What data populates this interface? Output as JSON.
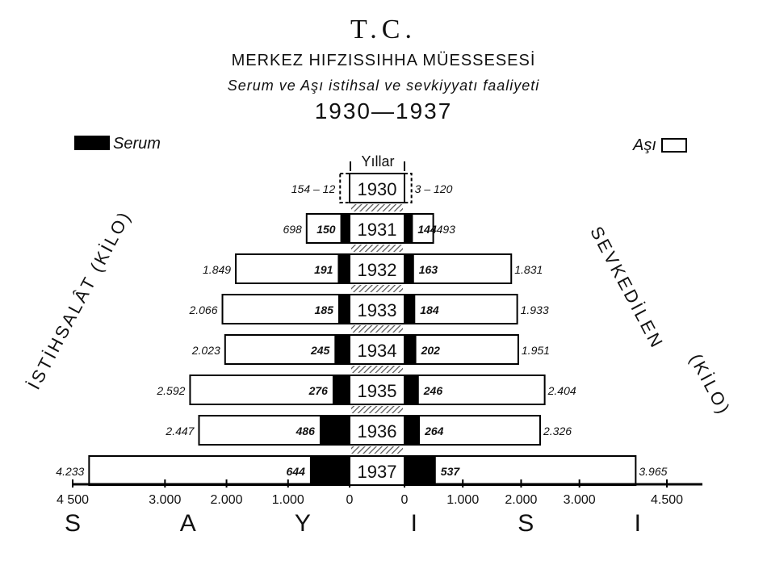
{
  "header": {
    "line1": "T.C.",
    "line2": "MERKEZ HIFZISSIHHA MÜESSESESİ",
    "line3": "Serum ve Aşı istihsal ve sevkiyyatı faaliyeti",
    "line4": "1930—1937"
  },
  "legend": {
    "left": "Serum",
    "right": "Aşı"
  },
  "center_label": "Yıllar",
  "side_labels": {
    "left": "İSTİHSALÂT (KİLO)",
    "right_top": "SEVKEDİLEN",
    "right_bottom": "(KİLO)"
  },
  "axis_name": "S A Y I S I",
  "colors": {
    "serum": "#000000",
    "asi": "#ffffff",
    "hatch": "#555555"
  },
  "chart_data": {
    "type": "bar",
    "orientation": "horizontal-pyramid",
    "categories": [
      "1930",
      "1931",
      "1932",
      "1933",
      "1934",
      "1935",
      "1936",
      "1937"
    ],
    "left_side": {
      "name": "İSTİHSALÂT (KİLO)",
      "total_labels": [
        "154 – 12",
        "698",
        "1.849",
        "2.066",
        "2.023",
        "2.592",
        "2.447",
        "4.233"
      ],
      "serum_labels": [
        "",
        "150",
        "191",
        "185",
        "245",
        "276",
        "486",
        "644"
      ],
      "total": [
        154,
        698,
        1849,
        2066,
        2023,
        2592,
        2447,
        4233
      ],
      "serum": [
        12,
        150,
        191,
        185,
        245,
        276,
        486,
        644
      ]
    },
    "right_side": {
      "name": "SEVKEDİLEN (KİLO)",
      "total_labels": [
        "3 – 120",
        "493",
        "1.831",
        "1.933",
        "1.951",
        "2.404",
        "2.326",
        "3.965"
      ],
      "serum_labels": [
        "",
        "144",
        "163",
        "184",
        "202",
        "246",
        "264",
        "537"
      ],
      "total": [
        120,
        493,
        1831,
        1933,
        1951,
        2404,
        2326,
        3965
      ],
      "serum": [
        3,
        144,
        163,
        184,
        202,
        246,
        264,
        537
      ]
    },
    "series": [
      {
        "name": "Serum"
      },
      {
        "name": "Aşı"
      }
    ],
    "x_ticks_left": [
      "4 500",
      "3.000",
      "2.000",
      "1.000",
      "0"
    ],
    "x_tick_values_left": [
      4500,
      3000,
      2000,
      1000,
      0
    ],
    "x_ticks_right": [
      "0",
      "1.000",
      "2.000",
      "3.000",
      "4.500"
    ],
    "x_tick_values_right": [
      0,
      1000,
      2000,
      3000,
      4500
    ],
    "xlim": [
      0,
      4500
    ],
    "legend_position": "top-left and top-right"
  }
}
